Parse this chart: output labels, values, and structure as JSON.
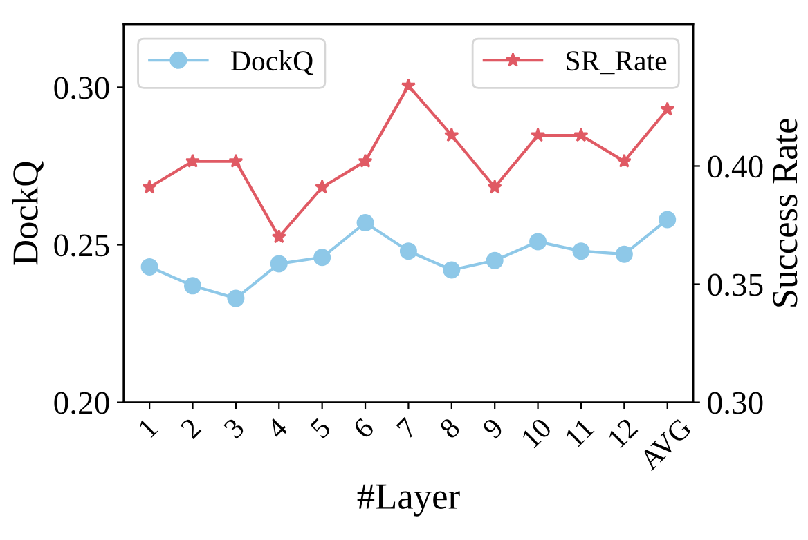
{
  "chart_data": {
    "type": "line",
    "xlabel": "#Layer",
    "ylabel": "DockQ",
    "y2label": "Success Rate",
    "categories": [
      "1",
      "2",
      "3",
      "4",
      "5",
      "6",
      "7",
      "8",
      "9",
      "10",
      "11",
      "12",
      "AVG"
    ],
    "series": [
      {
        "name": "DockQ",
        "color": "#8ec8e8",
        "marker": "circle",
        "values": [
          0.243,
          0.237,
          0.233,
          0.244,
          0.246,
          0.257,
          0.248,
          0.242,
          0.245,
          0.251,
          0.248,
          0.247,
          0.258
        ]
      },
      {
        "name": "SR_Rate",
        "color": "#e05a64",
        "marker": "star",
        "axis": "y2",
        "values": [
          0.391,
          0.402,
          0.402,
          0.37,
          0.391,
          0.402,
          0.434,
          0.413,
          0.391,
          0.413,
          0.413,
          0.402,
          0.424
        ]
      }
    ],
    "ylim": [
      0.2,
      0.32
    ],
    "yticks": [
      {
        "value": 0.2,
        "label": "0.20"
      },
      {
        "value": 0.25,
        "label": "0.25"
      },
      {
        "value": 0.3,
        "label": "0.30"
      }
    ],
    "y2lim": [
      0.3,
      0.46
    ],
    "y2ticks": [
      {
        "value": 0.3,
        "label": "0.30"
      },
      {
        "value": 0.35,
        "label": "0.35"
      },
      {
        "value": 0.4,
        "label": "0.40"
      }
    ],
    "grid": false,
    "legend": "top"
  }
}
